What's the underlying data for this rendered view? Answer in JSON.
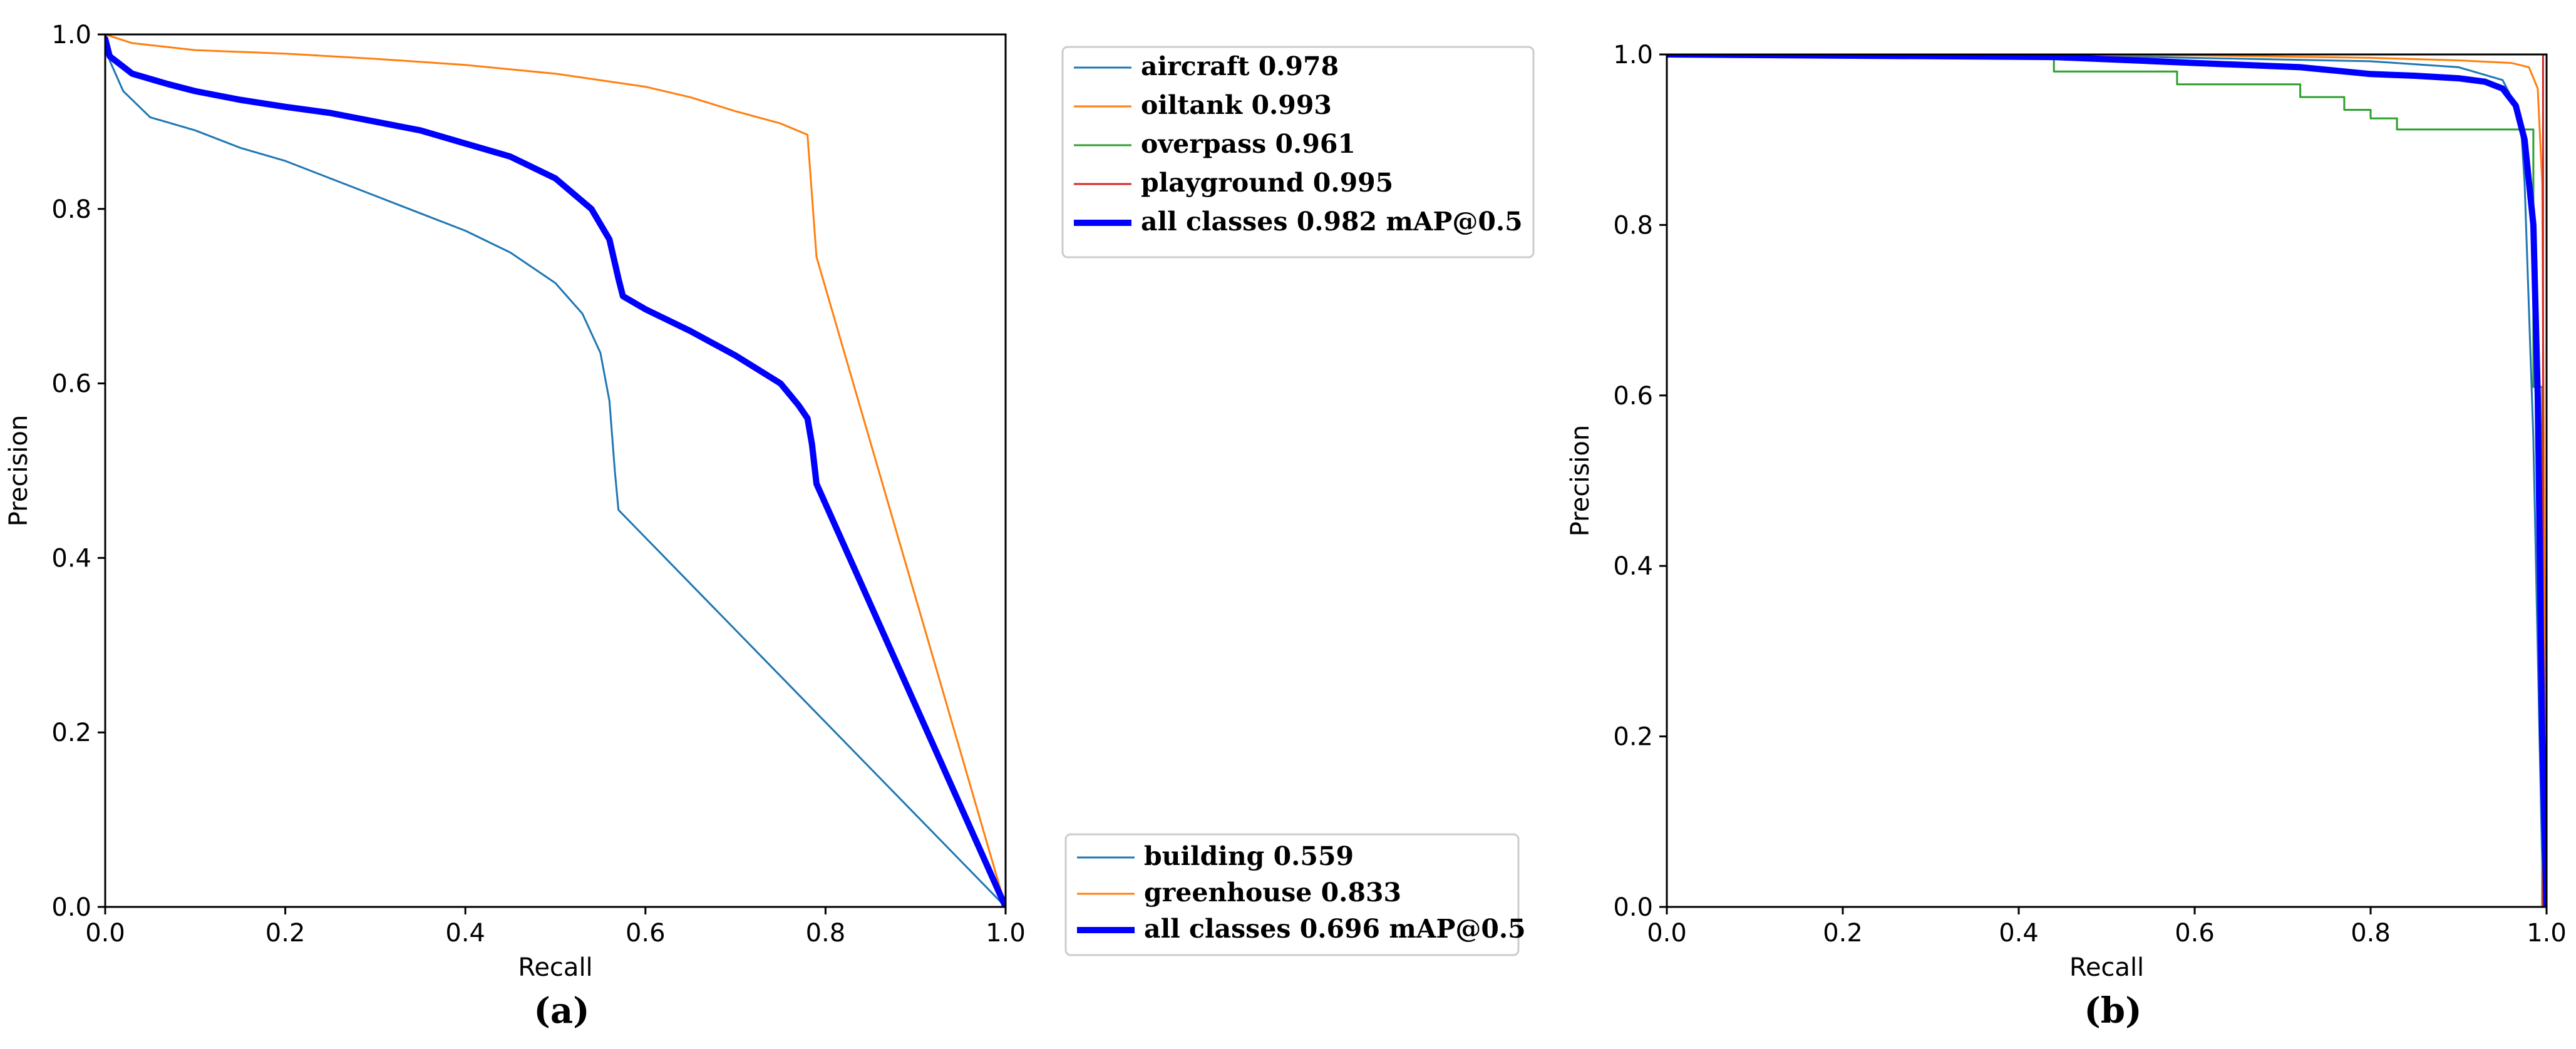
{
  "chart_data": [
    {
      "type": "line",
      "panel_label": "(a)",
      "xlabel": "Recall",
      "ylabel": "Precision",
      "xlim": [
        0,
        1
      ],
      "ylim": [
        0,
        1
      ],
      "xticks": [
        "0.0",
        "0.2",
        "0.4",
        "0.6",
        "0.8",
        "1.0"
      ],
      "yticks": [
        "0.0",
        "0.2",
        "0.4",
        "0.6",
        "0.8",
        "1.0"
      ],
      "legend_placement": "outside-right",
      "series": [
        {
          "name": "aircraft 0.978",
          "group": 1,
          "color": "#1f77b4",
          "width": 2,
          "points": []
        },
        {
          "name": "oiltank 0.993",
          "group": 1,
          "color": "#ff7f0e",
          "width": 2,
          "points": []
        },
        {
          "name": "overpass 0.961",
          "group": 1,
          "color": "#2ca02c",
          "width": 2,
          "points": []
        },
        {
          "name": "playground 0.995",
          "group": 1,
          "color": "#d62728",
          "width": 2,
          "points": []
        },
        {
          "name": "all classes 0.982 mAP@0.5",
          "group": 1,
          "color": "#0000ff",
          "width": 6,
          "points": []
        },
        {
          "name": "building 0.559",
          "group": 2,
          "color": "#1f77b4",
          "width": 2,
          "points": [
            [
              0,
              1.0
            ],
            [
              0.005,
              0.97
            ],
            [
              0.02,
              0.935
            ],
            [
              0.05,
              0.905
            ],
            [
              0.1,
              0.89
            ],
            [
              0.15,
              0.87
            ],
            [
              0.2,
              0.855
            ],
            [
              0.25,
              0.835
            ],
            [
              0.3,
              0.815
            ],
            [
              0.35,
              0.795
            ],
            [
              0.4,
              0.775
            ],
            [
              0.45,
              0.75
            ],
            [
              0.5,
              0.715
            ],
            [
              0.53,
              0.68
            ],
            [
              0.55,
              0.635
            ],
            [
              0.56,
              0.58
            ],
            [
              0.566,
              0.5
            ],
            [
              0.57,
              0.455
            ],
            [
              1.0,
              0.0
            ]
          ]
        },
        {
          "name": "greenhouse 0.833",
          "group": 2,
          "color": "#ff7f0e",
          "width": 2,
          "points": [
            [
              0,
              1.0
            ],
            [
              0.03,
              0.99
            ],
            [
              0.1,
              0.982
            ],
            [
              0.2,
              0.978
            ],
            [
              0.3,
              0.972
            ],
            [
              0.4,
              0.965
            ],
            [
              0.5,
              0.955
            ],
            [
              0.6,
              0.94
            ],
            [
              0.65,
              0.928
            ],
            [
              0.7,
              0.912
            ],
            [
              0.75,
              0.898
            ],
            [
              0.78,
              0.885
            ],
            [
              0.79,
              0.745
            ],
            [
              1.0,
              0.0
            ]
          ]
        },
        {
          "name": "all classes 0.696 mAP@0.5",
          "group": 2,
          "color": "#0000ff",
          "width": 6,
          "points": [
            [
              0,
              0.995
            ],
            [
              0.005,
              0.975
            ],
            [
              0.03,
              0.955
            ],
            [
              0.07,
              0.943
            ],
            [
              0.1,
              0.935
            ],
            [
              0.15,
              0.925
            ],
            [
              0.2,
              0.917
            ],
            [
              0.25,
              0.91
            ],
            [
              0.3,
              0.9
            ],
            [
              0.35,
              0.89
            ],
            [
              0.4,
              0.875
            ],
            [
              0.45,
              0.86
            ],
            [
              0.5,
              0.835
            ],
            [
              0.54,
              0.8
            ],
            [
              0.56,
              0.765
            ],
            [
              0.57,
              0.72
            ],
            [
              0.575,
              0.7
            ],
            [
              0.6,
              0.685
            ],
            [
              0.65,
              0.66
            ],
            [
              0.7,
              0.632
            ],
            [
              0.75,
              0.6
            ],
            [
              0.77,
              0.575
            ],
            [
              0.78,
              0.56
            ],
            [
              0.785,
              0.53
            ],
            [
              0.79,
              0.485
            ],
            [
              1.0,
              0.0
            ]
          ]
        }
      ]
    },
    {
      "type": "line",
      "panel_label": "(b)",
      "xlabel": "Recall",
      "ylabel": "Precision",
      "xlim": [
        0,
        1
      ],
      "ylim": [
        0,
        1
      ],
      "xticks": [
        "0.0",
        "0.2",
        "0.4",
        "0.6",
        "0.8",
        "1.0"
      ],
      "yticks": [
        "0.0",
        "0.2",
        "0.4",
        "0.6",
        "0.8",
        "1.0"
      ],
      "series": [
        {
          "name": "aircraft",
          "color": "#1f77b4",
          "width": 2,
          "points": [
            [
              0,
              1.0
            ],
            [
              0.5,
              0.998
            ],
            [
              0.8,
              0.992
            ],
            [
              0.9,
              0.985
            ],
            [
              0.95,
              0.97
            ],
            [
              0.97,
              0.93
            ],
            [
              0.975,
              0.85
            ],
            [
              0.98,
              0.7
            ],
            [
              0.985,
              0.55
            ],
            [
              0.99,
              0.3
            ],
            [
              0.995,
              0.05
            ],
            [
              1.0,
              0.0
            ]
          ]
        },
        {
          "name": "oiltank",
          "color": "#ff7f0e",
          "width": 2,
          "points": [
            [
              0,
              1.0
            ],
            [
              0.6,
              0.999
            ],
            [
              0.8,
              0.996
            ],
            [
              0.9,
              0.993
            ],
            [
              0.96,
              0.99
            ],
            [
              0.98,
              0.985
            ],
            [
              0.99,
              0.96
            ],
            [
              0.995,
              0.85
            ],
            [
              1.0,
              0.0
            ]
          ]
        },
        {
          "name": "overpass",
          "color": "#2ca02c",
          "width": 2,
          "points": [
            [
              0,
              1.0
            ],
            [
              0.44,
              1.0
            ],
            [
              0.44,
              0.98
            ],
            [
              0.58,
              0.98
            ],
            [
              0.58,
              0.965
            ],
            [
              0.72,
              0.965
            ],
            [
              0.72,
              0.95
            ],
            [
              0.77,
              0.95
            ],
            [
              0.77,
              0.935
            ],
            [
              0.8,
              0.935
            ],
            [
              0.8,
              0.925
            ],
            [
              0.83,
              0.925
            ],
            [
              0.83,
              0.912
            ],
            [
              0.985,
              0.912
            ],
            [
              0.985,
              0.61
            ],
            [
              0.995,
              0.61
            ],
            [
              0.995,
              0.0
            ]
          ]
        },
        {
          "name": "playground",
          "color": "#d62728",
          "width": 2,
          "points": [
            [
              0,
              1.0
            ],
            [
              0.996,
              1.0
            ],
            [
              0.996,
              0.0
            ]
          ]
        },
        {
          "name": "all classes",
          "color": "#0000ff",
          "width": 6,
          "points": [
            [
              0,
              1.0
            ],
            [
              0.44,
              0.997
            ],
            [
              0.6,
              0.99
            ],
            [
              0.72,
              0.985
            ],
            [
              0.77,
              0.98
            ],
            [
              0.8,
              0.977
            ],
            [
              0.85,
              0.975
            ],
            [
              0.9,
              0.972
            ],
            [
              0.93,
              0.968
            ],
            [
              0.95,
              0.96
            ],
            [
              0.965,
              0.94
            ],
            [
              0.975,
              0.9
            ],
            [
              0.985,
              0.8
            ],
            [
              0.99,
              0.6
            ],
            [
              0.995,
              0.2
            ],
            [
              1.0,
              0.0
            ]
          ]
        }
      ]
    }
  ]
}
